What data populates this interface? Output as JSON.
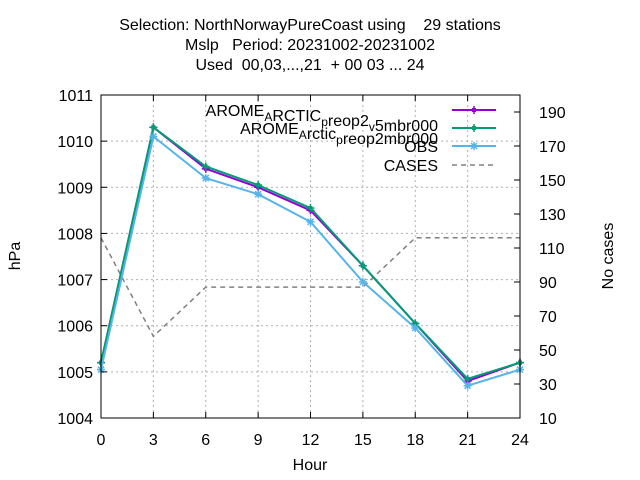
{
  "title_lines": [
    "Selection: NorthNorwayPureCoast using    29 stations",
    "Mslp   Period: 20231002-20231002",
    "Used  00,03,...,21  + 00 03 ... 24"
  ],
  "chart_data": {
    "type": "line",
    "xlabel": "Hour",
    "ylabel": "hPa",
    "y2label": "No cases",
    "x": [
      0,
      3,
      6,
      9,
      12,
      15,
      18,
      21,
      24
    ],
    "xlim": [
      0,
      24
    ],
    "ylim": [
      1004,
      1011
    ],
    "y2lim": [
      10,
      200
    ],
    "xticks": [
      "0",
      "3",
      "6",
      "9",
      "12",
      "15",
      "18",
      "21",
      "24"
    ],
    "yticks": [
      "1004",
      "1005",
      "1006",
      "1007",
      "1008",
      "1009",
      "1010",
      "1011"
    ],
    "y2ticks": [
      "10",
      "30",
      "50",
      "70",
      "90",
      "110",
      "130",
      "150",
      "170",
      "190"
    ],
    "grid": true,
    "legend_position": "top-right",
    "series": [
      {
        "name": "AROME_Arctic_preop2_v5mbr000",
        "label_parts": [
          [
            "AROME",
            "normal"
          ],
          [
            "A",
            "sub"
          ],
          [
            "RCTIC",
            "normal"
          ],
          [
            "p",
            "sub"
          ],
          [
            "reop2",
            "normal"
          ],
          [
            "v",
            "sub"
          ],
          [
            "5mbr000",
            "normal"
          ]
        ],
        "color": "#9400d3",
        "axis": "y",
        "marker": "plus",
        "values": [
          1005.2,
          1010.3,
          1009.4,
          1009.0,
          1008.5,
          1007.3,
          1006.05,
          1004.8,
          1005.2
        ]
      },
      {
        "name": "AROME_Arctic_preop2mbr000",
        "label_parts": [
          [
            "AROME",
            "normal"
          ],
          [
            "A",
            "sub"
          ],
          [
            "rctic",
            "normal"
          ],
          [
            "p",
            "sub"
          ],
          [
            "reop2mbr000",
            "normal"
          ]
        ],
        "color": "#009e73",
        "axis": "y",
        "marker": "plus",
        "values": [
          1005.2,
          1010.3,
          1009.45,
          1009.05,
          1008.55,
          1007.3,
          1006.05,
          1004.85,
          1005.2
        ]
      },
      {
        "name": "OBS",
        "label_parts": [
          [
            "OBS",
            "normal"
          ]
        ],
        "color": "#56b4e9",
        "axis": "y",
        "marker": "star",
        "values": [
          1005.05,
          1010.1,
          1009.2,
          1008.85,
          1008.25,
          1006.95,
          1005.95,
          1004.7,
          1005.05
        ]
      },
      {
        "name": "CASES",
        "label_parts": [
          [
            "CASES",
            "normal"
          ]
        ],
        "color": "#808080",
        "axis": "y2",
        "marker": "none",
        "dashed": true,
        "values": [
          116,
          58,
          87,
          87,
          87,
          87,
          116,
          116,
          116
        ]
      }
    ]
  }
}
